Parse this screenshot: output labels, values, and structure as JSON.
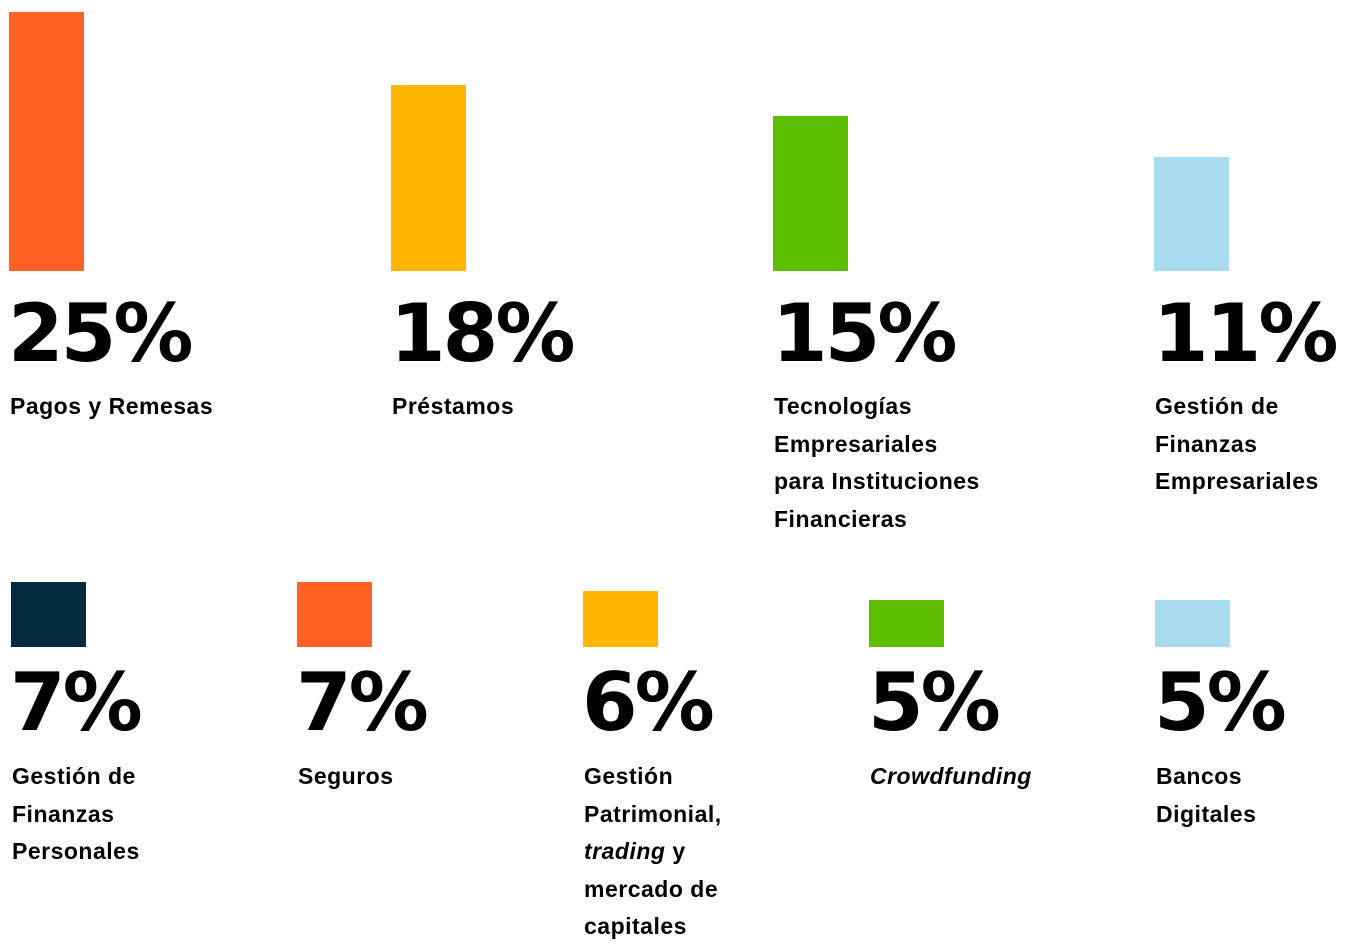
{
  "chart_data": {
    "type": "bar",
    "title": "",
    "xlabel": "",
    "ylabel": "",
    "unit": "%",
    "categories": [
      "Pagos y Remesas",
      "Préstamos",
      "Tecnologías Empresariales para Instituciones Financieras",
      "Gestión de Finanzas Empresariales",
      "Gestión de Finanzas Personales",
      "Seguros",
      "Gestión Patrimonial, trading y mercado de capitales",
      "Crowdfunding",
      "Bancos Digitales"
    ],
    "values": [
      25,
      18,
      15,
      11,
      7,
      7,
      6,
      5,
      5
    ],
    "value_labels": [
      "25%",
      "18%",
      "15%",
      "11%",
      "7%",
      "7%",
      "6%",
      "5%",
      "5%"
    ],
    "label_lines": [
      [
        [
          "Pagos y Remesas"
        ]
      ],
      [
        [
          "Préstamos"
        ]
      ],
      [
        [
          "Tecnologías"
        ],
        [
          "Empresariales"
        ],
        [
          "para Instituciones"
        ],
        [
          "Financieras"
        ]
      ],
      [
        [
          "Gestión de"
        ],
        [
          "Finanzas"
        ],
        [
          "Empresariales"
        ]
      ],
      [
        [
          "Gestión de"
        ],
        [
          "Finanzas"
        ],
        [
          "Personales"
        ]
      ],
      [
        [
          "Seguros"
        ]
      ],
      [
        [
          "Gestión"
        ],
        [
          "Patrimonial,"
        ],
        [
          "trading",
          " y"
        ],
        [
          "mercado de"
        ],
        [
          "capitales"
        ]
      ],
      [
        [
          "Crowdfunding"
        ]
      ],
      [
        [
          "Bancos"
        ],
        [
          "Digitales"
        ]
      ]
    ],
    "italic_segments": [
      "trading",
      "Crowdfunding"
    ],
    "colors": [
      "#FF6123",
      "#FFB500",
      "#5DBE00",
      "#A8DBF0",
      "#052B40",
      "#FF6123",
      "#FFB500",
      "#5DBE00",
      "#A8DBF0"
    ],
    "text_color": "#000000",
    "background": "#FFFFFF",
    "grid": false,
    "legend": "none"
  }
}
